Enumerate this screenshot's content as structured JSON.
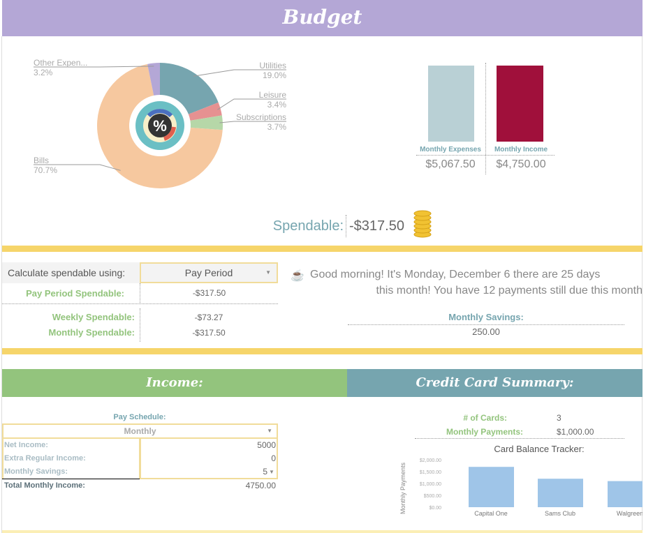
{
  "header": {
    "title": "Budget"
  },
  "pie": {
    "segments": [
      {
        "label": "Utilities",
        "pct_label": "19.0%",
        "value": 19.0,
        "color": "#76a5af"
      },
      {
        "label": "Leisure",
        "pct_label": "3.4%",
        "value": 3.4,
        "color": "#e69191"
      },
      {
        "label": "Subscriptions",
        "pct_label": "3.7%",
        "value": 3.7,
        "color": "#b6d7a8"
      },
      {
        "label": "Bills",
        "pct_label": "70.7%",
        "value": 70.7,
        "color": "#f6c89f"
      },
      {
        "label": "Other Expen...",
        "pct_label": "3.2%",
        "value": 3.2,
        "color": "#b4a7d6"
      }
    ],
    "center_icon": "percent-icon"
  },
  "summary": {
    "expenses_label": "Monthly Expenses",
    "income_label": "Monthly Income",
    "expenses_value": "$5,067.50",
    "income_value": "$4,750.00",
    "expenses": 5067.5,
    "income": 4750.0,
    "expenses_color": "#b9d0d5",
    "income_color": "#a0103b"
  },
  "spendable": {
    "label": "Spendable:",
    "value": "-$317.50",
    "icon": "coins-icon"
  },
  "calc": {
    "label": "Calculate spendable using:",
    "selected": "Pay Period",
    "pay_period_label": "Pay Period  Spendable:",
    "pay_period_value": "-$317.50",
    "weekly_label": "Weekly Spendable:",
    "weekly_value": "-$73.27",
    "monthly_label": "Monthly Spendable:",
    "monthly_value": "-$317.50"
  },
  "greeting": {
    "line1": "Good morning!  It's Monday, December 6 there are 25 days",
    "line2": "this month! You have 12 payments still due this month",
    "icon": "coffee-icon"
  },
  "savings": {
    "label": "Monthly Savings:",
    "value": "250.00"
  },
  "income": {
    "title": "Income:",
    "schedule_label": "Pay Schedule:",
    "schedule": "Monthly",
    "rows": [
      {
        "label": "Net Income:",
        "value": "5000"
      },
      {
        "label": "Extra Regular Income:",
        "value": "0"
      },
      {
        "label": "Monthly Savings:",
        "value": "5"
      }
    ],
    "total_label": "Total Monthly Income:",
    "total_value": "4750.00"
  },
  "credit": {
    "title": "Credit Card Summary:",
    "cards_label": "# of Cards:",
    "cards_value": "3",
    "payments_label": "Monthly Payments:",
    "payments_value": "$1,000.00"
  },
  "chart_data": {
    "type": "bar",
    "title": "Card Balance Tracker:",
    "ylabel": "Monthly Payments",
    "xlabel": "",
    "categories": [
      "Capital One",
      "Sams Club",
      "Walgreen"
    ],
    "values": [
      1700,
      1200,
      1100
    ],
    "ylim": [
      0,
      2000
    ],
    "yticks": [
      "$2,000.00",
      "$1,500.00",
      "$1,000.00",
      "$500.00",
      "$0.00"
    ],
    "color": "#9fc5e8"
  }
}
